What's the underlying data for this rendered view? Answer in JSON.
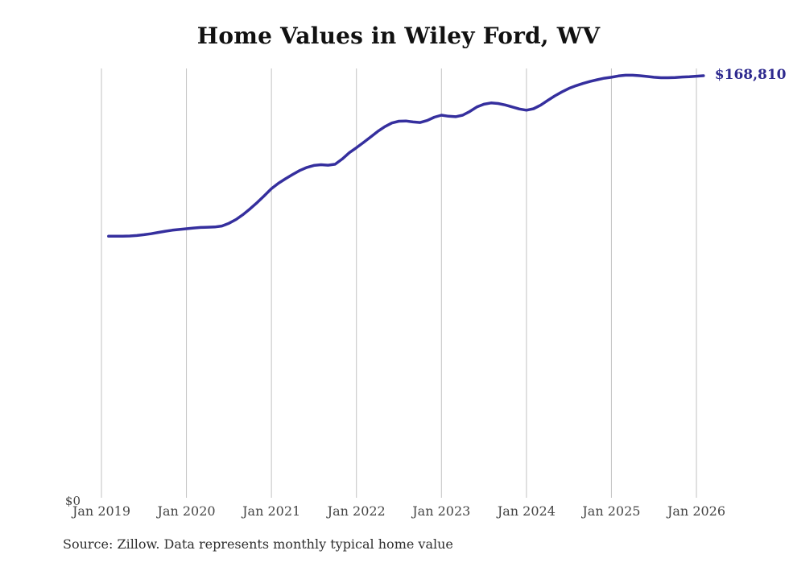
{
  "page": {
    "source_note": "Source: Zillow. Data represents monthly typical home value"
  },
  "colors": {
    "line": "#352f9e",
    "latest_label": "#2e2a8f",
    "gridline": "#c2c2c2",
    "title": "#111111",
    "tick_text": "#454545"
  },
  "chart_data": {
    "type": "line",
    "title": "Home Values in Wiley Ford, WV",
    "xlabel": "",
    "ylabel": "",
    "y_zero_label": "$0",
    "latest_value": 168810,
    "latest_value_label": "$168,810",
    "ylim": [
      0,
      171700
    ],
    "grid": "vertical-only",
    "legend": "none",
    "ticks": [
      {
        "label": "Jan 2019",
        "month": "2019-01"
      },
      {
        "label": "Jan 2020",
        "month": "2020-01"
      },
      {
        "label": "Jan 2021",
        "month": "2021-01"
      },
      {
        "label": "Jan 2022",
        "month": "2022-01"
      },
      {
        "label": "Jan 2023",
        "month": "2023-01"
      },
      {
        "label": "Jan 2024",
        "month": "2024-01"
      },
      {
        "label": "Jan 2025",
        "month": "2025-01"
      },
      {
        "label": "Jan 2026",
        "month": "2026-01"
      }
    ],
    "series": [
      {
        "name": "Typical home value",
        "months": [
          "2019-02",
          "2019-03",
          "2019-04",
          "2019-05",
          "2019-06",
          "2019-07",
          "2019-08",
          "2019-09",
          "2019-10",
          "2019-11",
          "2019-12",
          "2020-01",
          "2020-02",
          "2020-03",
          "2020-04",
          "2020-05",
          "2020-06",
          "2020-07",
          "2020-08",
          "2020-09",
          "2020-10",
          "2020-11",
          "2020-12",
          "2021-01",
          "2021-02",
          "2021-03",
          "2021-04",
          "2021-05",
          "2021-06",
          "2021-07",
          "2021-08",
          "2021-09",
          "2021-10",
          "2021-11",
          "2021-12",
          "2022-01",
          "2022-02",
          "2022-03",
          "2022-04",
          "2022-05",
          "2022-06",
          "2022-07",
          "2022-08",
          "2022-09",
          "2022-10",
          "2022-11",
          "2022-12",
          "2023-01",
          "2023-02",
          "2023-03",
          "2023-04",
          "2023-05",
          "2023-06",
          "2023-07",
          "2023-08",
          "2023-09",
          "2023-10",
          "2023-11",
          "2023-12",
          "2024-01",
          "2024-02",
          "2024-03",
          "2024-04",
          "2024-05",
          "2024-06",
          "2024-07",
          "2024-08",
          "2024-09",
          "2024-10",
          "2024-11",
          "2024-12",
          "2025-01",
          "2025-02",
          "2025-03",
          "2025-04",
          "2025-05",
          "2025-06",
          "2025-07",
          "2025-08",
          "2025-09",
          "2025-10",
          "2025-11",
          "2025-12",
          "2026-01",
          "2026-02"
        ],
        "values": [
          104600,
          104600,
          104600,
          104700,
          104900,
          105200,
          105600,
          106100,
          106600,
          107000,
          107300,
          107600,
          107900,
          108100,
          108200,
          108300,
          108700,
          109800,
          111300,
          113300,
          115600,
          118100,
          120800,
          123600,
          125800,
          127600,
          129300,
          130900,
          132100,
          132900,
          133200,
          133000,
          133400,
          135500,
          138000,
          140000,
          142100,
          144300,
          146500,
          148400,
          149900,
          150600,
          150700,
          150300,
          150100,
          150900,
          152200,
          153000,
          152600,
          152400,
          153000,
          154500,
          156300,
          157400,
          157900,
          157700,
          157100,
          156300,
          155500,
          155000,
          155600,
          157000,
          158900,
          160700,
          162300,
          163700,
          164800,
          165700,
          166500,
          167200,
          167800,
          168200,
          168700,
          169000,
          169000,
          168800,
          168500,
          168200,
          168000,
          168000,
          168100,
          168300,
          168400,
          168600,
          168810
        ]
      }
    ]
  }
}
